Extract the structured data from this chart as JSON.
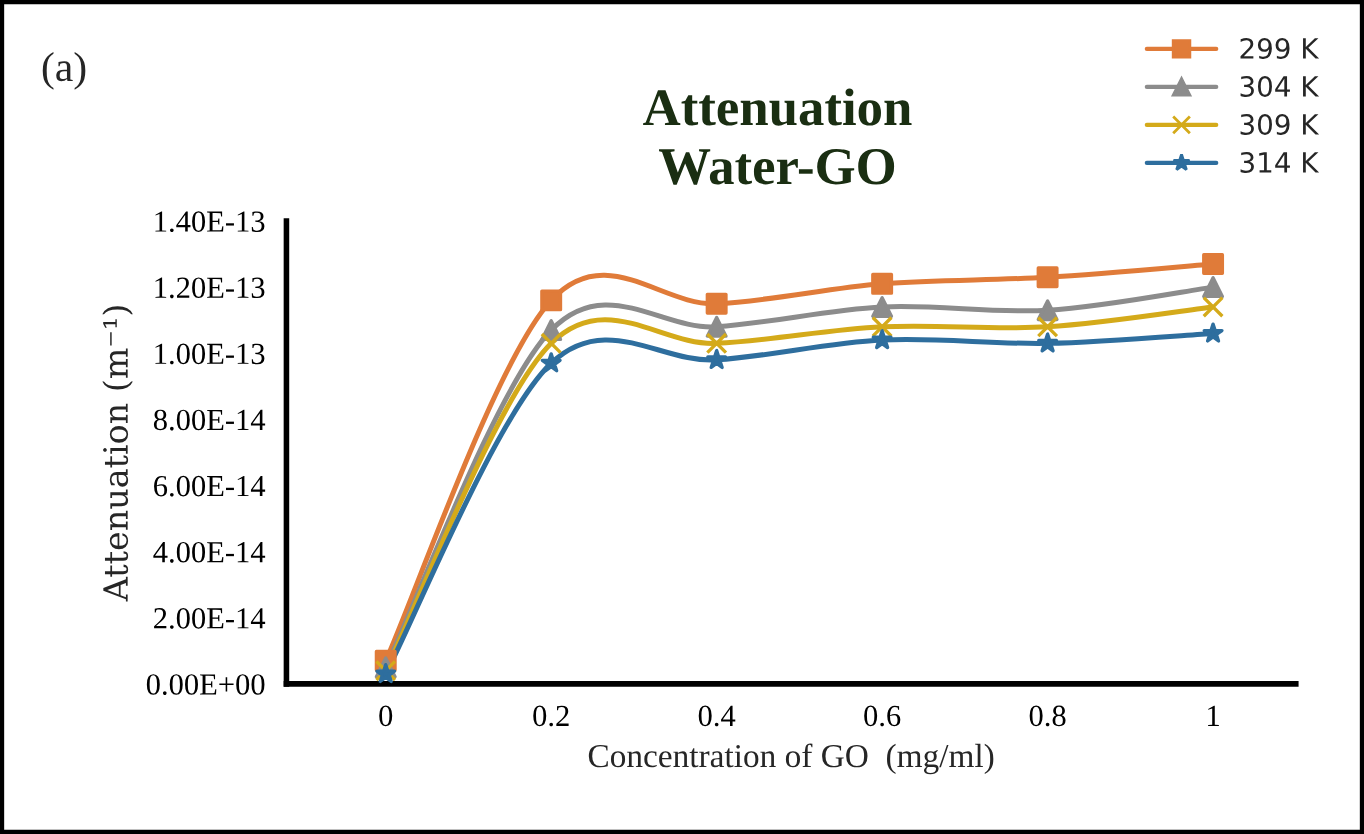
{
  "chart_data": {
    "type": "line",
    "title": "Attenuation\nWater-GO",
    "xlabel": "Concentration of GO  (mg/ml)",
    "ylabel": "Attenuation (m⁻¹)",
    "annotations": [
      "(a)"
    ],
    "x": [
      0,
      0.2,
      0.4,
      0.6,
      0.8,
      1
    ],
    "series": [
      {
        "name": "299 K",
        "color": "#e07b39",
        "marker": "square",
        "values": [
          7e-15,
          1.16e-13,
          1.15e-13,
          1.21e-13,
          1.23e-13,
          1.27e-13
        ]
      },
      {
        "name": "304 K",
        "color": "#8c8c8c",
        "marker": "triangle",
        "values": [
          5e-15,
          1.07e-13,
          1.08e-13,
          1.14e-13,
          1.13e-13,
          1.2e-13
        ]
      },
      {
        "name": "309 K",
        "color": "#d4aa1a",
        "marker": "cross",
        "values": [
          4e-15,
          1.03e-13,
          1.03e-13,
          1.08e-13,
          1.08e-13,
          1.14e-13
        ]
      },
      {
        "name": "314 K",
        "color": "#2e6e9e",
        "marker": "star",
        "values": [
          3e-15,
          9.7e-14,
          9.8e-14,
          1.04e-13,
          1.03e-13,
          1.06e-13
        ]
      }
    ],
    "xlim": [
      -0.12,
      1.1
    ],
    "xticks": [
      0,
      0.2,
      0.4,
      0.6,
      0.8,
      1
    ],
    "ylim": [
      0,
      1.4e-13
    ],
    "yticks": [
      {
        "value": 0,
        "label": "0.00E+00"
      },
      {
        "value": 2e-14,
        "label": "2.00E-14"
      },
      {
        "value": 4e-14,
        "label": "4.00E-14"
      },
      {
        "value": 6e-14,
        "label": "6.00E-14"
      },
      {
        "value": 8e-14,
        "label": "8.00E-14"
      },
      {
        "value": 1e-13,
        "label": "1.00E-13"
      },
      {
        "value": 1.2e-13,
        "label": "1.20E-13"
      },
      {
        "value": 1.4e-13,
        "label": "1.40E-13"
      }
    ],
    "grid": false,
    "legend": "top right",
    "line_style": "solid"
  }
}
